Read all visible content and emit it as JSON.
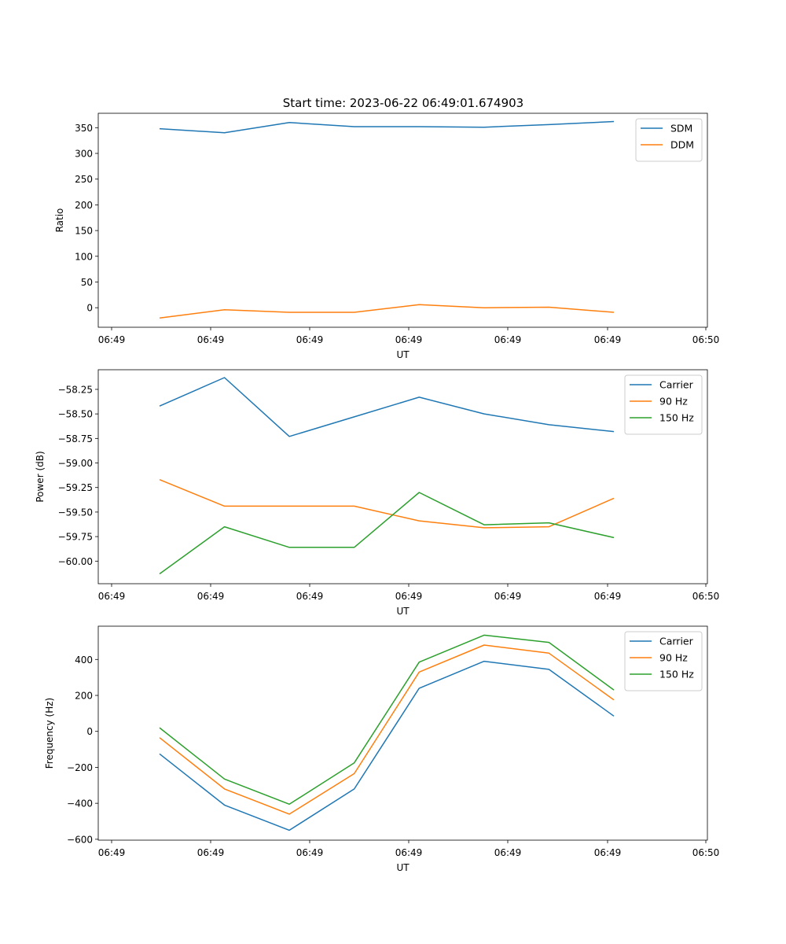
{
  "figure": {
    "title": "Start time: 2023-06-22 06:49:01.674903"
  },
  "chart_data": [
    {
      "type": "line",
      "xlabel": "UT",
      "ylabel": "Ratio",
      "x_tick_labels": [
        "06:49",
        "06:49",
        "06:49",
        "06:49",
        "06:49",
        "06:49",
        "06:50"
      ],
      "x_points": 8,
      "xlim": [
        -0.2,
        9.0
      ],
      "ylim": [
        -38,
        378
      ],
      "y_ticks": [
        0,
        50,
        100,
        150,
        200,
        250,
        300,
        350
      ],
      "legend": "upper-right",
      "series": [
        {
          "name": "SDM",
          "color": "#1f77b4",
          "values": [
            348,
            340,
            360,
            352,
            352,
            351,
            356,
            362
          ]
        },
        {
          "name": "DDM",
          "color": "#ff7f0e",
          "values": [
            -20,
            -4,
            -9,
            -9,
            6,
            0,
            1,
            -9
          ]
        }
      ]
    },
    {
      "type": "line",
      "xlabel": "UT",
      "ylabel": "Power (dB)",
      "x_tick_labels": [
        "06:49",
        "06:49",
        "06:49",
        "06:49",
        "06:49",
        "06:49",
        "06:50"
      ],
      "x_points": 8,
      "xlim": [
        -0.2,
        9.0
      ],
      "ylim": [
        -60.23,
        -58.05
      ],
      "y_ticks": [
        -60.0,
        -59.75,
        -59.5,
        -59.25,
        -59.0,
        -58.75,
        -58.5,
        -58.25
      ],
      "y_tick_labels": [
        "−60.00",
        "−59.75",
        "−59.50",
        "−59.25",
        "−59.00",
        "−58.75",
        "−58.50",
        "−58.25"
      ],
      "legend": "upper-right",
      "series": [
        {
          "name": "Carrier",
          "color": "#1f77b4",
          "values": [
            -58.42,
            -58.13,
            -58.73,
            -58.53,
            -58.33,
            -58.5,
            -58.61,
            -58.68
          ]
        },
        {
          "name": "90 Hz",
          "color": "#ff7f0e",
          "values": [
            -59.17,
            -59.44,
            -59.44,
            -59.44,
            -59.59,
            -59.66,
            -59.65,
            -59.36
          ]
        },
        {
          "name": "150 Hz",
          "color": "#2ca02c",
          "values": [
            -60.13,
            -59.65,
            -59.86,
            -59.86,
            -59.3,
            -59.63,
            -59.61,
            -59.76
          ]
        }
      ]
    },
    {
      "type": "line",
      "xlabel": "UT",
      "ylabel": "Frequency (Hz)",
      "x_tick_labels": [
        "06:49",
        "06:49",
        "06:49",
        "06:49",
        "06:49",
        "06:49",
        "06:50"
      ],
      "x_points": 8,
      "xlim": [
        -0.2,
        9.0
      ],
      "ylim": [
        -605,
        585
      ],
      "y_ticks": [
        -600,
        -400,
        -200,
        0,
        200,
        400
      ],
      "y_tick_labels": [
        "−600",
        "−400",
        "−200",
        "0",
        "200",
        "400"
      ],
      "legend": "upper-right",
      "series": [
        {
          "name": "Carrier",
          "color": "#1f77b4",
          "values": [
            -125,
            -410,
            -550,
            -320,
            240,
            390,
            345,
            85
          ]
        },
        {
          "name": "90 Hz",
          "color": "#ff7f0e",
          "values": [
            -35,
            -320,
            -460,
            -235,
            330,
            480,
            435,
            175
          ]
        },
        {
          "name": "150 Hz",
          "color": "#2ca02c",
          "values": [
            20,
            -265,
            -405,
            -175,
            385,
            535,
            495,
            230
          ]
        }
      ]
    }
  ]
}
